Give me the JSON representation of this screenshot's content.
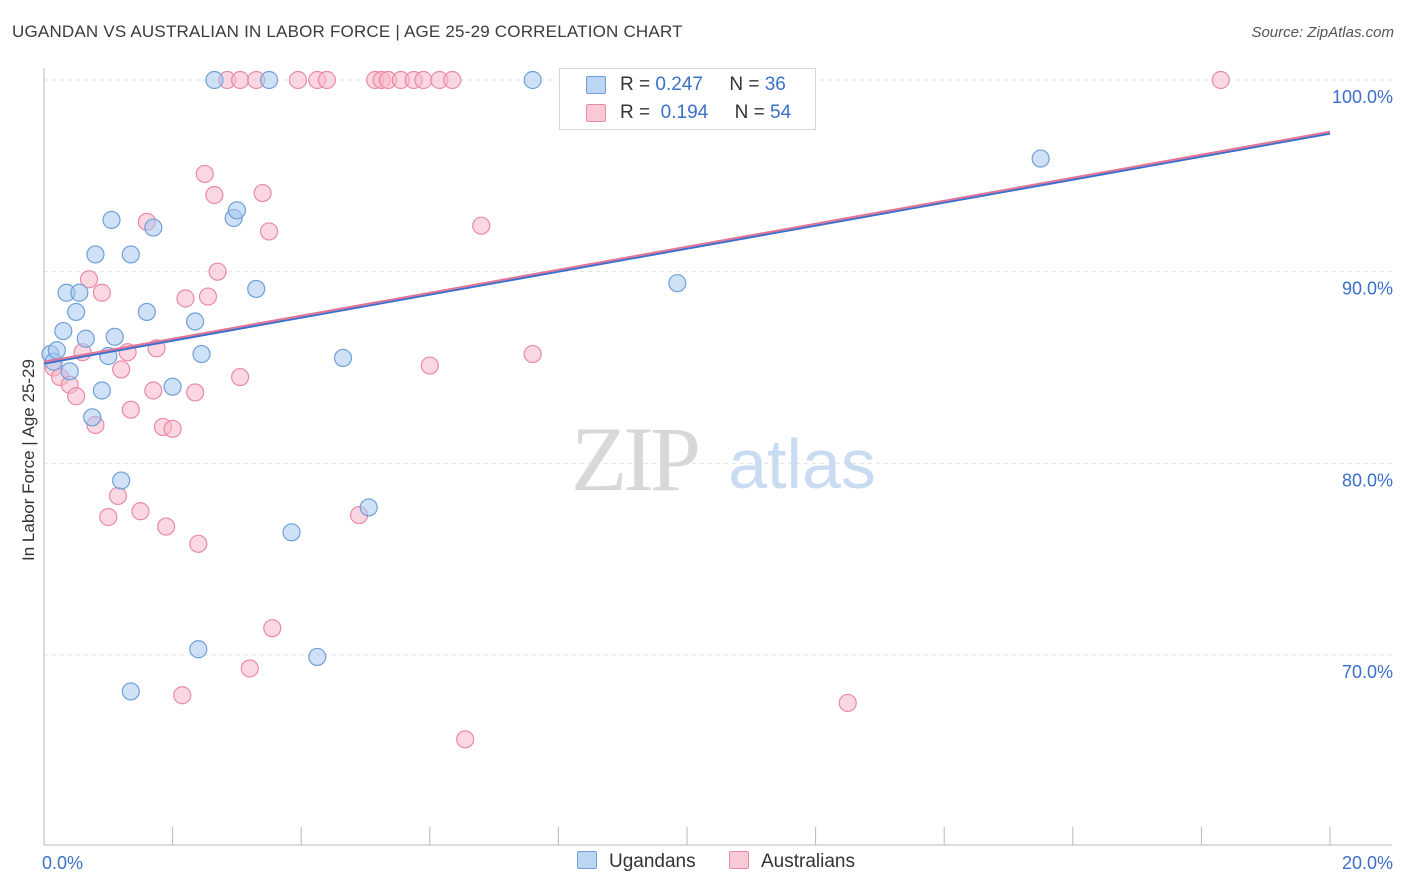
{
  "title": "UGANDAN VS AUSTRALIAN IN LABOR FORCE | AGE 25-29 CORRELATION CHART",
  "source": "Source: ZipAtlas.com",
  "watermark": {
    "zip": "ZIP",
    "atlas": "atlas"
  },
  "legend_top": [
    {
      "r_label": "R =",
      "r_value": "0.247",
      "n_label": "N =",
      "n_value": "36"
    },
    {
      "r_label": "R =",
      "r_value": "0.194",
      "n_label": "N =",
      "n_value": "54"
    }
  ],
  "legend_bottom": [
    "Ugandans",
    "Australians"
  ],
  "colors": {
    "blue_fill": "#a8c8f0",
    "blue_stroke": "#6f9fd8",
    "blue_line": "#3a6fd0",
    "pink_fill": "#f7b8c8",
    "pink_stroke": "#e88aa5",
    "pink_line": "#e07595",
    "tick_text": "#3b6fc9",
    "grid": "#e3e3e3"
  },
  "chart_data": {
    "type": "scatter",
    "title": "UGANDAN VS AUSTRALIAN IN LABOR FORCE | AGE 25-29 CORRELATION CHART",
    "xlabel": "",
    "ylabel": "In Labor Force | Age 25-29",
    "xlim": [
      0,
      20
    ],
    "ylim": [
      60,
      101.5
    ],
    "x_tick_labels": [
      "0.0%",
      "20.0%"
    ],
    "y_ticks": [
      70,
      80,
      90,
      100
    ],
    "y_tick_labels": [
      "70.0%",
      "80.0%",
      "90.0%",
      "100.0%"
    ],
    "series": [
      {
        "name": "Ugandans",
        "r": 0.247,
        "n": 36,
        "trend": {
          "x0": 0,
          "y0": 85.2,
          "x1": 20,
          "y1": 97.2
        },
        "points": [
          [
            0.1,
            85.7
          ],
          [
            0.15,
            85.3
          ],
          [
            0.2,
            85.9
          ],
          [
            0.3,
            86.9
          ],
          [
            0.35,
            88.9
          ],
          [
            0.4,
            84.8
          ],
          [
            0.5,
            87.9
          ],
          [
            0.55,
            88.9
          ],
          [
            0.65,
            86.5
          ],
          [
            0.75,
            82.4
          ],
          [
            0.8,
            90.9
          ],
          [
            0.9,
            83.8
          ],
          [
            1.05,
            92.7
          ],
          [
            1.0,
            85.6
          ],
          [
            1.1,
            86.6
          ],
          [
            1.2,
            79.1
          ],
          [
            1.35,
            90.9
          ],
          [
            1.6,
            87.9
          ],
          [
            1.7,
            92.3
          ],
          [
            2.0,
            84.0
          ],
          [
            2.35,
            87.4
          ],
          [
            2.45,
            85.7
          ],
          [
            2.65,
            100.0
          ],
          [
            2.95,
            92.8
          ],
          [
            3.0,
            93.2
          ],
          [
            3.3,
            89.1
          ],
          [
            3.5,
            100.0
          ],
          [
            3.85,
            76.4
          ],
          [
            4.25,
            69.9
          ],
          [
            4.65,
            85.5
          ],
          [
            5.05,
            77.7
          ],
          [
            7.6,
            100.0
          ],
          [
            9.85,
            89.4
          ],
          [
            15.5,
            95.9
          ],
          [
            1.35,
            68.1
          ],
          [
            2.4,
            70.3
          ]
        ]
      },
      {
        "name": "Australians",
        "r": 0.194,
        "n": 54,
        "trend": {
          "x0": 0,
          "y0": 85.3,
          "x1": 20,
          "y1": 97.3
        },
        "points": [
          [
            0.15,
            85.0
          ],
          [
            0.25,
            84.5
          ],
          [
            0.4,
            84.1
          ],
          [
            0.5,
            83.5
          ],
          [
            0.6,
            85.8
          ],
          [
            0.7,
            89.6
          ],
          [
            0.8,
            82.0
          ],
          [
            0.9,
            88.9
          ],
          [
            1.0,
            77.2
          ],
          [
            1.15,
            78.3
          ],
          [
            1.2,
            84.9
          ],
          [
            1.3,
            85.8
          ],
          [
            1.35,
            82.8
          ],
          [
            1.5,
            77.5
          ],
          [
            1.6,
            92.6
          ],
          [
            1.7,
            83.8
          ],
          [
            1.75,
            86.0
          ],
          [
            1.85,
            81.9
          ],
          [
            1.9,
            76.7
          ],
          [
            2.0,
            81.8
          ],
          [
            2.15,
            67.9
          ],
          [
            2.2,
            88.6
          ],
          [
            2.35,
            83.7
          ],
          [
            2.4,
            75.8
          ],
          [
            2.5,
            95.1
          ],
          [
            2.55,
            88.7
          ],
          [
            2.65,
            94.0
          ],
          [
            2.7,
            90.0
          ],
          [
            2.85,
            100.0
          ],
          [
            3.05,
            100.0
          ],
          [
            3.05,
            84.5
          ],
          [
            3.2,
            69.3
          ],
          [
            3.3,
            100.0
          ],
          [
            3.4,
            94.1
          ],
          [
            3.5,
            92.1
          ],
          [
            3.55,
            71.4
          ],
          [
            3.95,
            100.0
          ],
          [
            4.25,
            100.0
          ],
          [
            4.4,
            100.0
          ],
          [
            4.9,
            77.3
          ],
          [
            5.15,
            100.0
          ],
          [
            5.25,
            100.0
          ],
          [
            5.35,
            100.0
          ],
          [
            5.55,
            100.0
          ],
          [
            5.75,
            100.0
          ],
          [
            5.9,
            100.0
          ],
          [
            6.0,
            85.1
          ],
          [
            6.15,
            100.0
          ],
          [
            6.35,
            100.0
          ],
          [
            6.55,
            65.6
          ],
          [
            6.8,
            92.4
          ],
          [
            7.6,
            85.7
          ],
          [
            12.5,
            67.5
          ],
          [
            18.3,
            100.0
          ]
        ]
      }
    ]
  }
}
